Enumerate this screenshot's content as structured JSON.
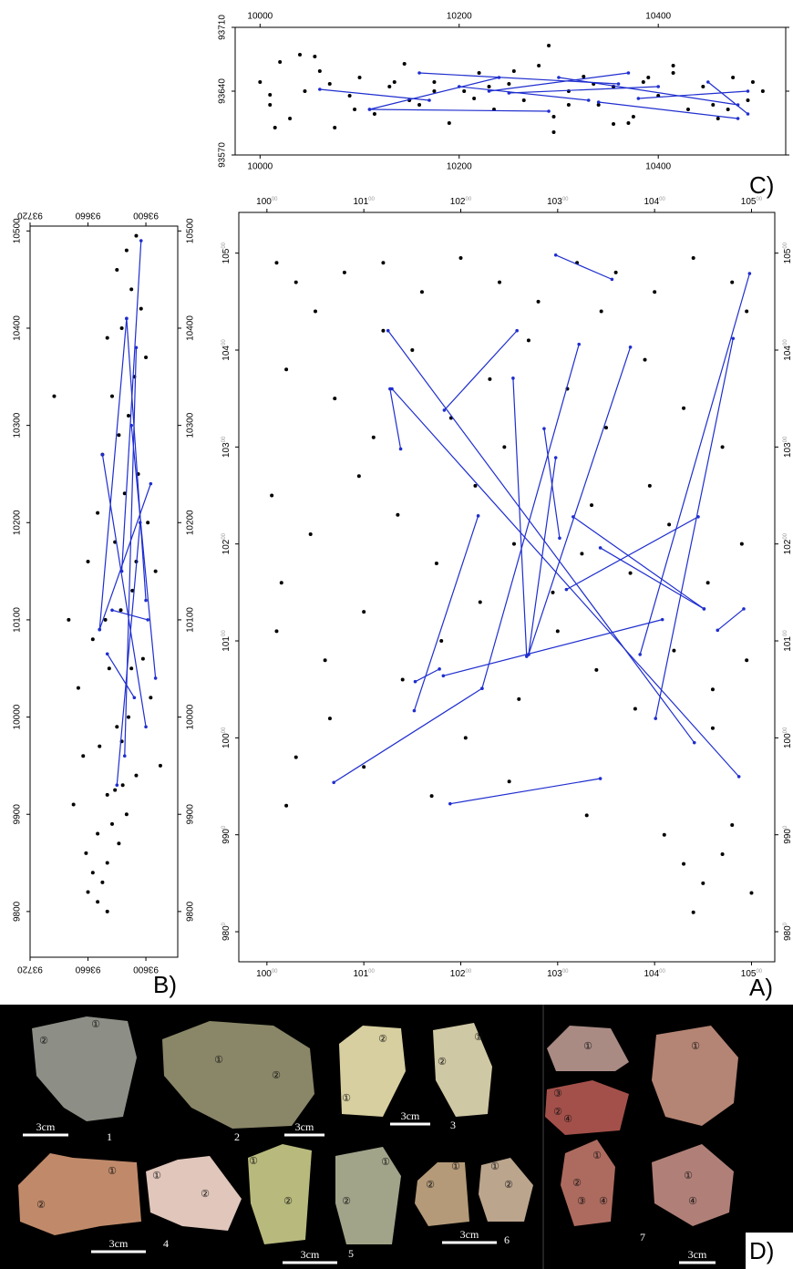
{
  "chart_data": [
    {
      "type": "scatter",
      "label": "A)",
      "xlim": [
        9971,
        10524
      ],
      "ylim": [
        9769,
        10542
      ],
      "xticks": [
        10000,
        10100,
        10200,
        10300,
        10400,
        10500
      ],
      "yticks": [
        9800,
        9900,
        10000,
        10100,
        10200,
        10300,
        10400,
        10500
      ],
      "series": [
        {
          "color": "#000000",
          "x": [
            10010,
            10030,
            10050,
            10080,
            10120,
            10160,
            10200,
            10240,
            10280,
            10320,
            10360,
            10400,
            10440,
            10480,
            10495,
            10020,
            10070,
            10110,
            10150,
            10190,
            10230,
            10270,
            10310,
            10350,
            10390,
            10430,
            10470,
            10005,
            10045,
            10095,
            10135,
            10175,
            10215,
            10255,
            10295,
            10335,
            10375,
            10415,
            10455,
            10490,
            10010,
            10060,
            10100,
            10140,
            10180,
            10220,
            10260,
            10300,
            10340,
            10380,
            10420,
            10460,
            10495,
            10030,
            10100,
            10170,
            10250,
            10330,
            10410,
            10430,
            10450,
            10470,
            10440,
            10480,
            10500,
            10020,
            10065,
            10205,
            10325,
            10395,
            10015,
            10245,
            10345,
            10120,
            10460
          ],
          "y": [
            10490,
            10470,
            10440,
            10480,
            10490,
            10460,
            10495,
            10470,
            10450,
            10490,
            10480,
            10460,
            10495,
            10470,
            10440,
            10380,
            10350,
            10310,
            10400,
            10330,
            10370,
            10410,
            10360,
            10320,
            10390,
            10340,
            10300,
            10250,
            10210,
            10270,
            10230,
            10180,
            10260,
            10200,
            10150,
            10240,
            10170,
            10220,
            10160,
            10200,
            10110,
            10080,
            10130,
            10060,
            10100,
            10140,
            10040,
            10110,
            10070,
            10030,
            10090,
            10050,
            10080,
            9980,
            9970,
            9940,
            9955,
            9920,
            9900,
            9870,
            9850,
            9880,
            9820,
            9910,
            9840,
            9930,
            10020,
            10000,
            10190,
            10260,
            10160,
            10300,
            10440,
            10420,
            10010
          ]
        }
      ],
      "refits": {
        "color": "#1f2ecf",
        "segments": [
          {
            "x": [
              10069,
              10222
            ],
            "y": [
              9954,
              10051
            ]
          },
          {
            "x": [
              10222,
              10322
            ],
            "y": [
              10051,
              10406
            ]
          },
          {
            "x": [
              10189,
              10344
            ],
            "y": [
              9932,
              9958
            ]
          },
          {
            "x": [
              10298,
              10356
            ],
            "y": [
              10498,
              10473
            ]
          },
          {
            "x": [
              10125,
              10441
            ],
            "y": [
              10420,
              9995
            ]
          },
          {
            "x": [
              10183,
              10258
            ],
            "y": [
              10338,
              10420
            ]
          },
          {
            "x": [
              10127,
              10138
            ],
            "y": [
              10360,
              10298
            ]
          },
          {
            "x": [
              10153,
              10178
            ],
            "y": [
              10058,
              10071
            ]
          },
          {
            "x": [
              10182,
              10408
            ],
            "y": [
              10064,
              10122
            ]
          },
          {
            "x": [
              10270,
              10375
            ],
            "y": [
              10086,
              10403
            ]
          },
          {
            "x": [
              10270,
              10298
            ],
            "y": [
              10086,
              10289
            ]
          },
          {
            "x": [
              10309,
              10445
            ],
            "y": [
              10153,
              10228
            ]
          },
          {
            "x": [
              10316,
              10451
            ],
            "y": [
              10228,
              10133
            ]
          },
          {
            "x": [
              10344,
              10451
            ],
            "y": [
              10196,
              10133
            ]
          },
          {
            "x": [
              10401,
              10481
            ],
            "y": [
              10020,
              10412
            ]
          },
          {
            "x": [
              10385,
              10498
            ],
            "y": [
              10086,
              10479
            ]
          },
          {
            "x": [
              10465,
              10492
            ],
            "y": [
              10111,
              10133
            ]
          },
          {
            "x": [
              10129,
              10487
            ],
            "y": [
              10360,
              9960
            ]
          },
          {
            "x": [
              10254,
              10268
            ],
            "y": [
              10371,
              10084
            ]
          },
          {
            "x": [
              10152,
              10218
            ],
            "y": [
              10028,
              10229
            ]
          },
          {
            "x": [
              10286,
              10302
            ],
            "y": [
              10319,
              10206
            ]
          }
        ]
      }
    },
    {
      "type": "scatter",
      "label": "B)",
      "xlim": [
        93720,
        93567
      ],
      "ylim": [
        9753,
        10505
      ],
      "xticks": [
        93720,
        93660,
        93600
      ],
      "yticks": [
        9800,
        9900,
        10000,
        10100,
        10200,
        10300,
        10400,
        10500
      ],
      "series": [
        {
          "color": "#000000",
          "x": [
            93610,
            93620,
            93630,
            93615,
            93605,
            93625,
            93640,
            93600,
            93612,
            93635,
            93618,
            93628,
            93645,
            93608,
            93622,
            93650,
            93598,
            93632,
            93660,
            93590,
            93614,
            93626,
            93642,
            93655,
            93603,
            93638,
            93670,
            93595,
            93618,
            93630,
            93648,
            93665,
            93585,
            93610,
            93624,
            93640,
            93675,
            93620,
            93635,
            93650,
            93662,
            93628,
            93640,
            93655,
            93645,
            93660,
            93650,
            93640,
            93632,
            93625,
            93610,
            93695,
            93680,
            93615
          ],
          "y": [
            10495,
            10480,
            10460,
            10440,
            10420,
            10400,
            10390,
            10370,
            10350,
            10330,
            10310,
            10290,
            10270,
            10250,
            10230,
            10210,
            10200,
            10180,
            10160,
            10150,
            10130,
            10110,
            10100,
            10080,
            10060,
            10050,
            10030,
            10020,
            10000,
            9990,
            9970,
            9960,
            9950,
            9940,
            9930,
            9920,
            9910,
            9900,
            9890,
            9880,
            9860,
            9870,
            9850,
            9840,
            9830,
            9820,
            9810,
            9800,
            9925,
            9975,
            10160,
            10330,
            10100,
            10050
          ]
        }
      ],
      "refits": {
        "color": "#1f2ecf",
        "segments": [
          {
            "x": [
              93648,
              93620
            ],
            "y": [
              10090,
              10410
            ]
          },
          {
            "x": [
              93620,
              93600
            ],
            "y": [
              10410,
              10120
            ]
          },
          {
            "x": [
              93648,
              93595
            ],
            "y": [
              10090,
              10240
            ]
          },
          {
            "x": [
              93640,
              93612
            ],
            "y": [
              10065,
              10020
            ]
          },
          {
            "x": [
              93630,
              93606
            ],
            "y": [
              9930,
              10200
            ]
          },
          {
            "x": [
              93615,
              93590
            ],
            "y": [
              10300,
              10040
            ]
          },
          {
            "x": [
              93625,
              93605
            ],
            "y": [
              10150,
              10490
            ]
          },
          {
            "x": [
              93635,
              93598
            ],
            "y": [
              10110,
              10100
            ]
          },
          {
            "x": [
              93622,
              93610
            ],
            "y": [
              9960,
              10380
            ]
          },
          {
            "x": [
              93645,
              93600
            ],
            "y": [
              10270,
              9990
            ]
          }
        ]
      }
    },
    {
      "type": "scatter",
      "label": "C)",
      "xlim": [
        9975,
        10528
      ],
      "ylim": [
        93570,
        93710
      ],
      "xticks": [
        10000,
        10200,
        10400
      ],
      "yticks": [
        93570,
        93640,
        93710
      ],
      "series": [
        {
          "color": "#000000",
          "x": [
            10000,
            10010,
            10020,
            10030,
            10045,
            10060,
            10075,
            10090,
            10100,
            10115,
            10130,
            10145,
            10160,
            10175,
            10190,
            10205,
            10220,
            10235,
            10250,
            10265,
            10280,
            10295,
            10310,
            10325,
            10340,
            10355,
            10370,
            10385,
            10400,
            10415,
            10430,
            10445,
            10460,
            10475,
            10490,
            10505,
            10015,
            10055,
            10095,
            10135,
            10175,
            10215,
            10255,
            10295,
            10335,
            10375,
            10415,
            10455,
            10495,
            10040,
            10290,
            10355,
            10010,
            10070,
            10150,
            10230,
            10310,
            10390,
            10470
          ],
          "y": [
            93650,
            93625,
            93672,
            93610,
            93640,
            93662,
            93600,
            93635,
            93655,
            93615,
            93645,
            93670,
            93625,
            93650,
            93605,
            93640,
            93660,
            93620,
            93648,
            93630,
            93668,
            93612,
            93640,
            93656,
            93625,
            93645,
            93605,
            93650,
            93635,
            93660,
            93620,
            93645,
            93610,
            93655,
            93630,
            93640,
            93600,
            93678,
            93620,
            93650,
            93640,
            93632,
            93662,
            93595,
            93648,
            93612,
            93668,
            93625,
            93650,
            93680,
            93690,
            93604,
            93636,
            93648,
            93630,
            93645,
            93625,
            93655,
            93620
          ]
        }
      ],
      "refits": {
        "color": "#1f2ecf",
        "segments": [
          {
            "x": [
              10060,
              10170
            ],
            "y": [
              93642,
              93630
            ]
          },
          {
            "x": [
              10110,
              10290
            ],
            "y": [
              93620,
              93618
            ]
          },
          {
            "x": [
              10110,
              10240
            ],
            "y": [
              93620,
              93655
            ]
          },
          {
            "x": [
              10160,
              10360
            ],
            "y": [
              93660,
              93648
            ]
          },
          {
            "x": [
              10200,
              10330
            ],
            "y": [
              93645,
              93630
            ]
          },
          {
            "x": [
              10250,
              10400
            ],
            "y": [
              93638,
              93645
            ]
          },
          {
            "x": [
              10300,
              10480
            ],
            "y": [
              93655,
              93625
            ]
          },
          {
            "x": [
              10340,
              10480
            ],
            "y": [
              93628,
              93610
            ]
          },
          {
            "x": [
              10380,
              10490
            ],
            "y": [
              93632,
              93640
            ]
          },
          {
            "x": [
              10230,
              10370
            ],
            "y": [
              93640,
              93660
            ]
          },
          {
            "x": [
              10450,
              10490
            ],
            "y": [
              93650,
              93615
            ]
          }
        ]
      }
    }
  ],
  "photo_panel": {
    "label": "D)",
    "figures": [
      {
        "number": "1",
        "scale": "3cm",
        "parts": [
          "①",
          "②"
        ]
      },
      {
        "number": "2",
        "scale": "3cm",
        "parts": [
          "①",
          "②"
        ]
      },
      {
        "number": "3",
        "scale": "3cm",
        "parts": [
          "②",
          "①",
          "②",
          "①"
        ]
      },
      {
        "number": "4",
        "scale": "3cm",
        "parts": [
          "②",
          "①",
          "①",
          "②"
        ]
      },
      {
        "number": "5",
        "scale": "3cm",
        "parts": [
          "①",
          "②",
          "②",
          "①"
        ]
      },
      {
        "number": "6",
        "scale": "3cm",
        "parts": [
          "②",
          "①",
          "①",
          "②"
        ]
      },
      {
        "number": "7",
        "scale": "3cm",
        "parts": [
          "①",
          "①",
          "②",
          "③",
          "④",
          "①",
          "②",
          "③",
          "④",
          "①",
          "④"
        ]
      }
    ]
  }
}
